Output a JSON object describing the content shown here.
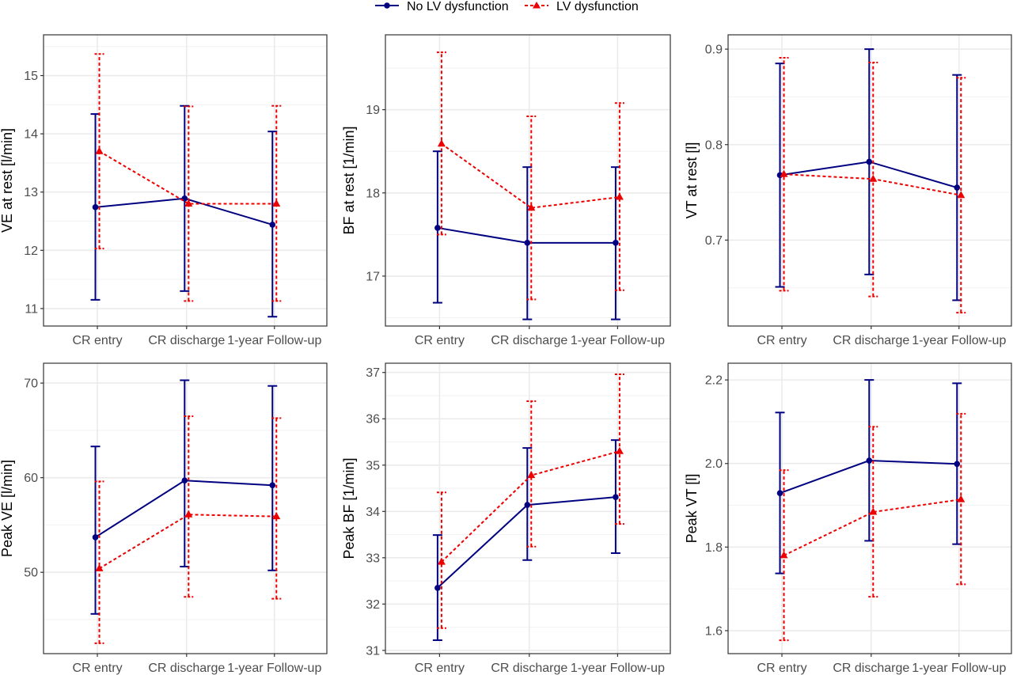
{
  "legend": {
    "position": "top-center",
    "entries": [
      {
        "label": "No LV dysfunction",
        "color": "#000080",
        "marker": "circle",
        "line": "solid"
      },
      {
        "label": "LV dysfunction",
        "color": "#ee0000",
        "marker": "triangle",
        "line": "dashed"
      }
    ]
  },
  "chart_data": [
    {
      "type": "line",
      "categories": [
        "CR entry",
        "CR discharge",
        "1-year Follow-up"
      ],
      "ylabel": "VE at rest [l/min]",
      "ylim": [
        10.7,
        15.7
      ],
      "yticks": [
        11,
        12,
        13,
        14,
        15
      ],
      "grid": true,
      "series": [
        {
          "name": "No LV dysfunction",
          "values": [
            12.74,
            12.89,
            12.44
          ],
          "lower": [
            11.15,
            11.3,
            10.86
          ],
          "upper": [
            14.34,
            14.48,
            14.04
          ]
        },
        {
          "name": "LV dysfunction",
          "values": [
            13.7,
            12.8,
            12.8
          ],
          "lower": [
            12.03,
            11.13,
            11.13
          ],
          "upper": [
            15.37,
            14.47,
            14.48
          ]
        }
      ]
    },
    {
      "type": "line",
      "categories": [
        "CR entry",
        "CR discharge",
        "1-year Follow-up"
      ],
      "ylabel": "BF at rest [1/min]",
      "ylim": [
        16.4,
        19.9
      ],
      "yticks": [
        17,
        18,
        19
      ],
      "grid": true,
      "series": [
        {
          "name": "No LV dysfunction",
          "values": [
            17.58,
            17.4,
            17.4
          ],
          "lower": [
            16.68,
            16.48,
            16.48
          ],
          "upper": [
            18.5,
            18.31,
            18.31
          ]
        },
        {
          "name": "LV dysfunction",
          "values": [
            18.59,
            17.82,
            17.95
          ],
          "lower": [
            17.5,
            16.72,
            16.83
          ],
          "upper": [
            19.69,
            18.92,
            19.08
          ]
        }
      ]
    },
    {
      "type": "line",
      "categories": [
        "CR entry",
        "CR discharge",
        "1-year Follow-up"
      ],
      "ylabel": "VT at rest [l]",
      "ylim": [
        0.61,
        0.915
      ],
      "yticks": [
        0.7,
        0.8,
        0.9
      ],
      "grid": true,
      "series": [
        {
          "name": "No LV dysfunction",
          "values": [
            0.768,
            0.782,
            0.755
          ],
          "lower": [
            0.651,
            0.664,
            0.637
          ],
          "upper": [
            0.885,
            0.9,
            0.873
          ]
        },
        {
          "name": "LV dysfunction",
          "values": [
            0.769,
            0.764,
            0.747
          ],
          "lower": [
            0.647,
            0.641,
            0.624
          ],
          "upper": [
            0.891,
            0.886,
            0.87
          ]
        }
      ]
    },
    {
      "type": "line",
      "categories": [
        "CR entry",
        "CR discharge",
        "1-year Follow-up"
      ],
      "ylabel": "Peak VE [l/min]",
      "ylim": [
        41.4,
        72.1
      ],
      "yticks": [
        50,
        60,
        70
      ],
      "grid": true,
      "series": [
        {
          "name": "No LV dysfunction",
          "values": [
            53.7,
            59.7,
            59.2
          ],
          "lower": [
            45.6,
            50.6,
            50.2
          ],
          "upper": [
            63.3,
            70.3,
            69.7
          ]
        },
        {
          "name": "LV dysfunction",
          "values": [
            50.4,
            56.1,
            55.9
          ],
          "lower": [
            42.5,
            47.4,
            47.2
          ],
          "upper": [
            59.6,
            66.5,
            66.3
          ]
        }
      ]
    },
    {
      "type": "line",
      "categories": [
        "CR entry",
        "CR discharge",
        "1-year Follow-up"
      ],
      "ylabel": "Peak BF [1/min]",
      "ylim": [
        30.93,
        37.2
      ],
      "yticks": [
        31,
        32,
        33,
        34,
        35,
        36,
        37
      ],
      "grid": true,
      "series": [
        {
          "name": "No LV dysfunction",
          "values": [
            32.35,
            34.14,
            34.31
          ],
          "lower": [
            31.22,
            32.95,
            33.1
          ],
          "upper": [
            33.49,
            35.37,
            35.54
          ]
        },
        {
          "name": "LV dysfunction",
          "values": [
            32.91,
            34.78,
            35.3
          ],
          "lower": [
            31.48,
            33.24,
            33.73
          ],
          "upper": [
            34.41,
            36.38,
            36.96
          ]
        }
      ]
    },
    {
      "type": "line",
      "categories": [
        "CR entry",
        "CR discharge",
        "1-year Follow-up"
      ],
      "ylabel": "Peak VT [l]",
      "ylim": [
        1.545,
        2.24
      ],
      "yticks": [
        1.6,
        1.8,
        2.0,
        2.2
      ],
      "grid": true,
      "series": [
        {
          "name": "No LV dysfunction",
          "values": [
            1.929,
            2.007,
            1.999
          ],
          "lower": [
            1.737,
            1.815,
            1.807
          ],
          "upper": [
            2.122,
            2.2,
            2.192
          ]
        },
        {
          "name": "LV dysfunction",
          "values": [
            1.78,
            1.884,
            1.914
          ],
          "lower": [
            1.577,
            1.681,
            1.711
          ],
          "upper": [
            1.984,
            2.088,
            2.119
          ]
        }
      ]
    }
  ]
}
